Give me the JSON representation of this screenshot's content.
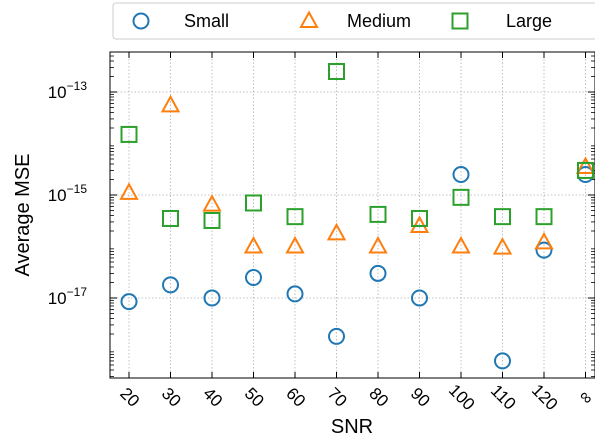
{
  "chart_data": {
    "type": "scatter",
    "xlabel": "SNR",
    "ylabel": "Average MSE",
    "y_scale": "log",
    "ylim": [
      3e-19,
      3e-13
    ],
    "grid": true,
    "legend_position": "top",
    "categories": [
      "20",
      "30",
      "40",
      "50",
      "60",
      "70",
      "80",
      "90",
      "100",
      "110",
      "120",
      "∞"
    ],
    "y_ticks": [
      {
        "value": 1e-13,
        "base": "10",
        "exp": "−13"
      },
      {
        "value": 1e-15,
        "base": "10",
        "exp": "−15"
      },
      {
        "value": 1e-17,
        "base": "10",
        "exp": "−17"
      }
    ],
    "series": [
      {
        "name": "Small",
        "marker": "circle",
        "color": "#1f77b4",
        "values": [
          8.5e-18,
          1.8e-17,
          1e-17,
          2.5e-17,
          1.2e-17,
          1.8e-18,
          3e-17,
          1e-17,
          2.5e-15,
          6e-19,
          8.5e-17,
          2.5e-15
        ]
      },
      {
        "name": "Medium",
        "marker": "triangle",
        "color": "#ff7f0e",
        "values": [
          1.1e-15,
          5.5e-14,
          6.5e-16,
          1e-16,
          1e-16,
          1.8e-16,
          1e-16,
          2.5e-16,
          1e-16,
          9.5e-17,
          1.2e-16,
          3.5e-15
        ]
      },
      {
        "name": "Large",
        "marker": "square",
        "color": "#2ca02c",
        "values": [
          1.5e-14,
          3.5e-16,
          3.2e-16,
          7e-16,
          3.8e-16,
          2.5e-13,
          4.2e-16,
          3.5e-16,
          9e-16,
          3.8e-16,
          3.8e-16,
          3e-15
        ]
      }
    ]
  }
}
